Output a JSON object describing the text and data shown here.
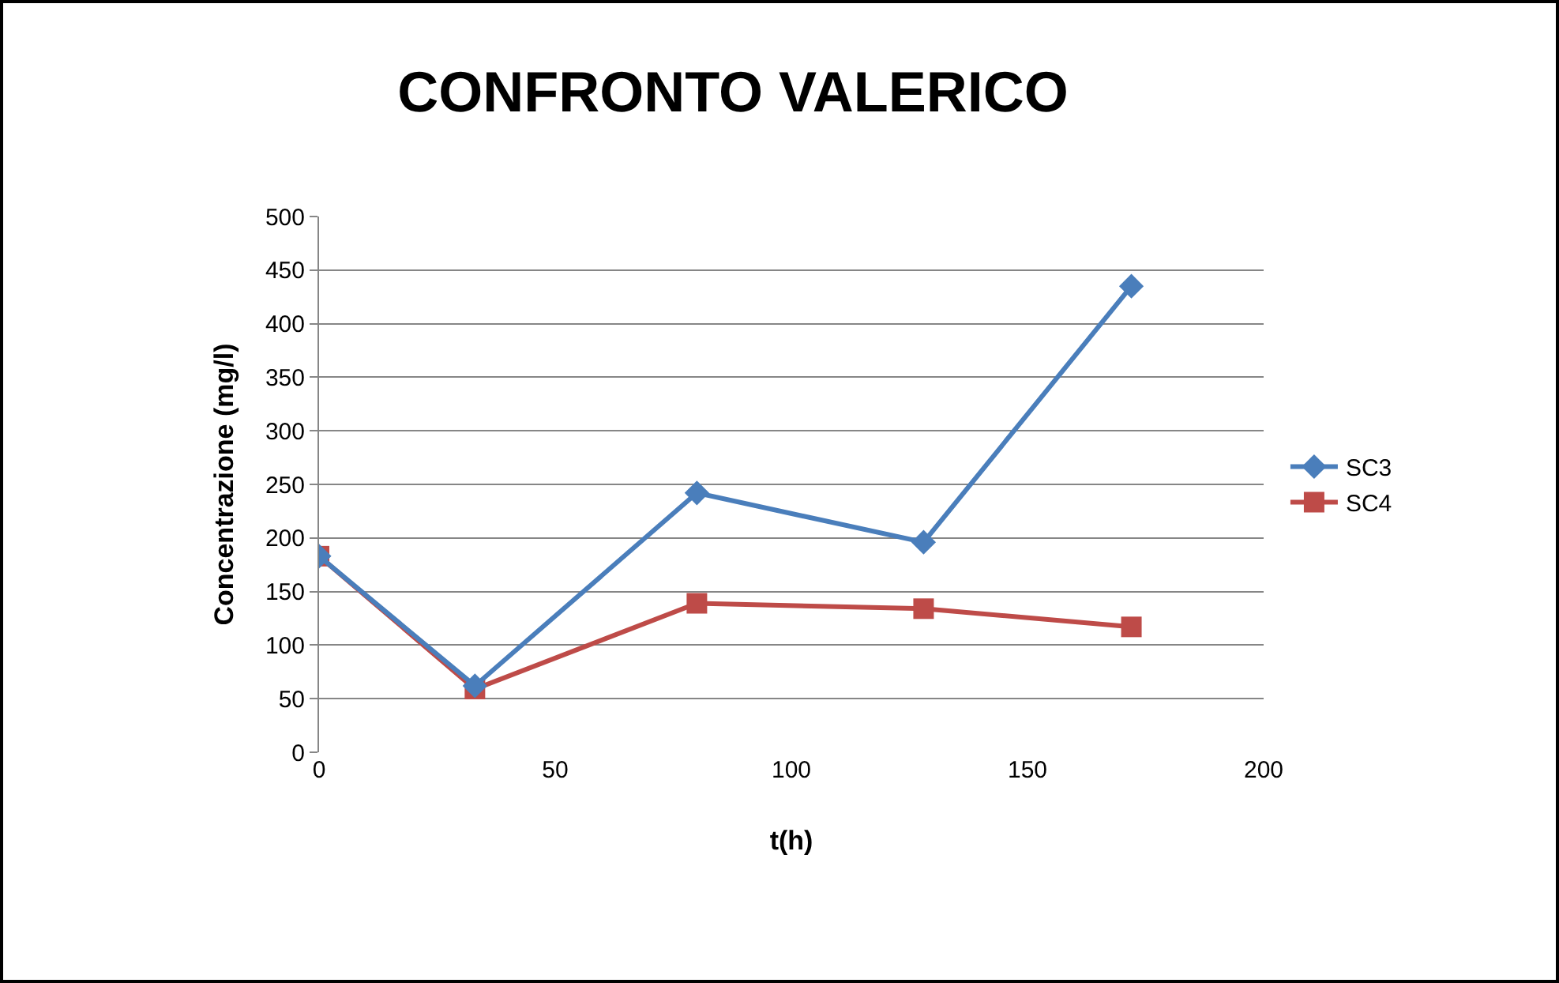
{
  "chart_data": {
    "type": "line",
    "title": "CONFRONTO VALERICO",
    "xlabel": "t(h)",
    "ylabel": "Concentrazione (mg/l)",
    "x": [
      0,
      33,
      80,
      128,
      172
    ],
    "series": [
      {
        "name": "SC3",
        "color": "#4a7ebb",
        "marker": "diamond",
        "values": [
          183,
          62,
          242,
          196,
          435
        ]
      },
      {
        "name": "SC4",
        "color": "#be4b48",
        "marker": "square",
        "values": [
          183,
          59,
          139,
          134,
          117
        ]
      }
    ],
    "xlim": [
      0,
      200
    ],
    "xticks": [
      0,
      50,
      100,
      150,
      200
    ],
    "ylim": [
      0,
      500
    ],
    "yticks": [
      0,
      50,
      100,
      150,
      200,
      250,
      300,
      350,
      400,
      450,
      500
    ],
    "grid": "y",
    "legend": "right"
  }
}
